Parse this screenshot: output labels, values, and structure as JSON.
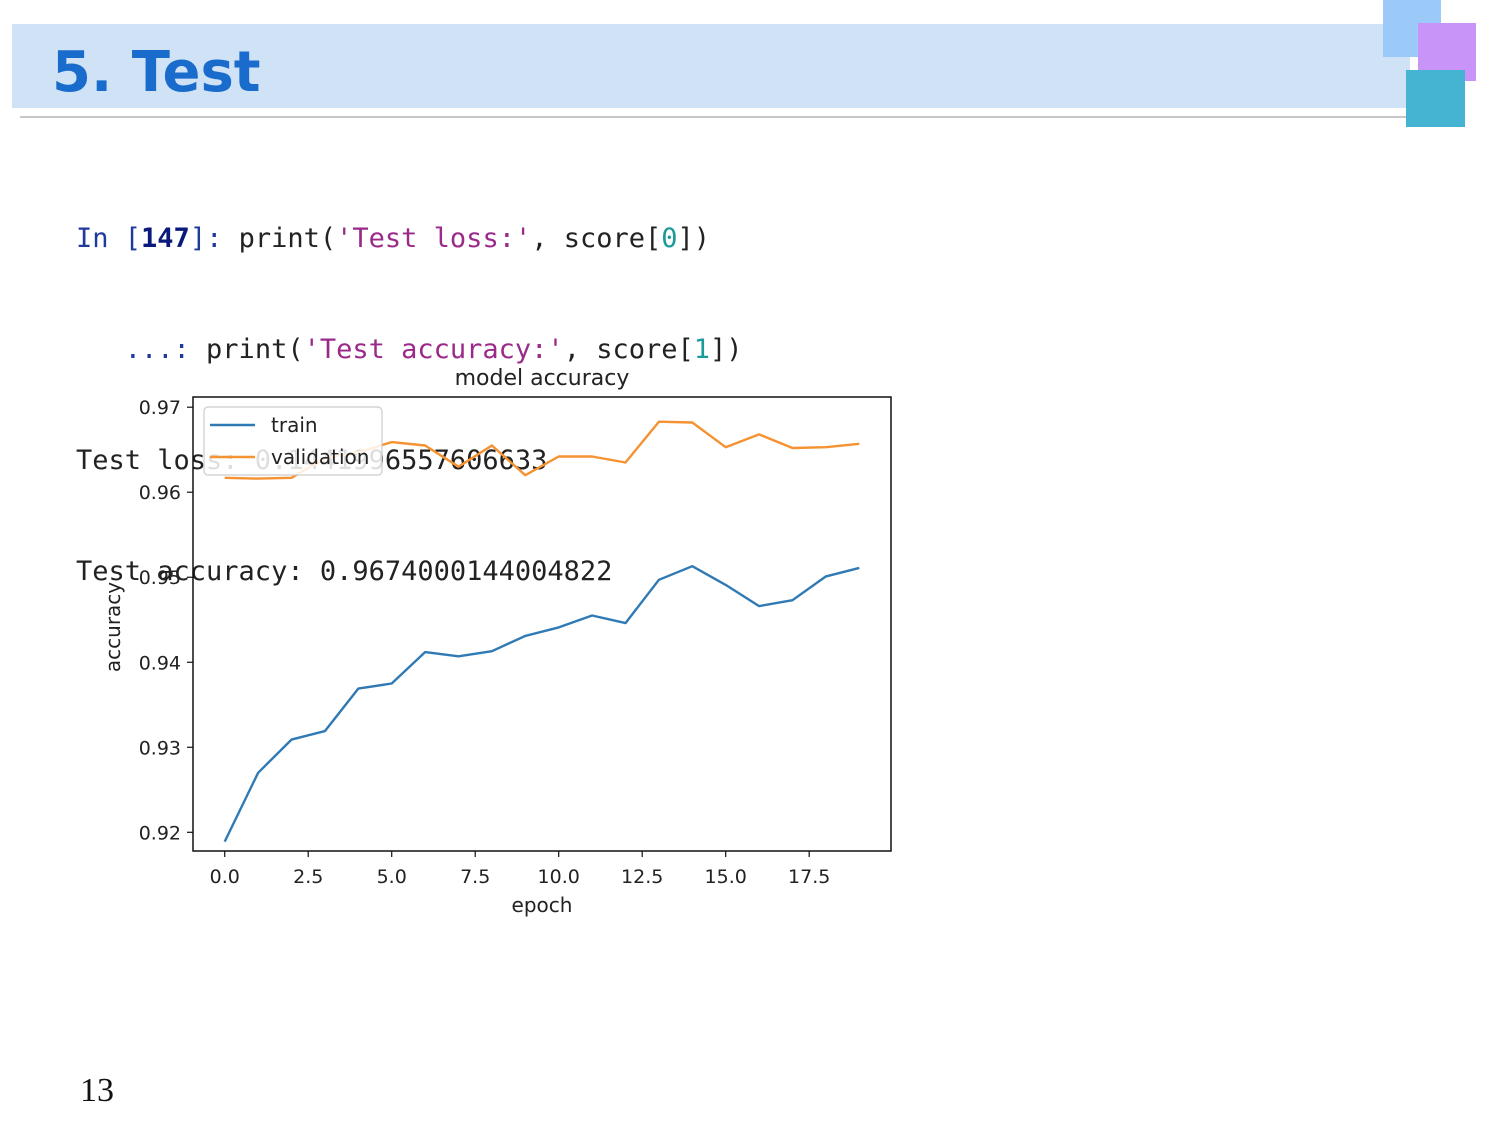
{
  "slide": {
    "title": "5. Test",
    "page_number": "13"
  },
  "code": {
    "line1": {
      "prompt_open": "In [",
      "prompt_num": "147",
      "prompt_close": "]: ",
      "fn": "print(",
      "str": "'Test loss:'",
      "mid": ", score[",
      "idx": "0",
      "end": "])"
    },
    "line2": {
      "prompt": "   ...: ",
      "fn": "print(",
      "str": "'Test accuracy:'",
      "mid": ", score[",
      "idx": "1",
      "end": "])"
    },
    "output1": "Test loss: 0.1441996557606633",
    "output2": "Test accuracy: 0.9674000144004822"
  },
  "colors": {
    "train": "#2f7ab5",
    "validation": "#f59231"
  },
  "chart_data": {
    "type": "line",
    "title": "model accuracy",
    "xlabel": "epoch",
    "ylabel": "accuracy",
    "xlim": [
      -0.95,
      19.95
    ],
    "ylim": [
      0.9178,
      0.9712
    ],
    "xticks": [
      "0.0",
      "2.5",
      "5.0",
      "7.5",
      "10.0",
      "12.5",
      "15.0",
      "17.5"
    ],
    "yticks": [
      "0.92",
      "0.93",
      "0.94",
      "0.95",
      "0.96",
      "0.97"
    ],
    "legend_position": "upper-left",
    "x": [
      0,
      1,
      2,
      3,
      4,
      5,
      6,
      7,
      8,
      9,
      10,
      11,
      12,
      13,
      14,
      15,
      16,
      17,
      18,
      19
    ],
    "series": [
      {
        "name": "train",
        "values": [
          0.9189,
          0.927,
          0.9309,
          0.9319,
          0.9369,
          0.9375,
          0.9412,
          0.9407,
          0.9413,
          0.9431,
          0.9441,
          0.9455,
          0.9446,
          0.9497,
          0.9513,
          0.9491,
          0.9466,
          0.9473,
          0.9501,
          0.9511
        ]
      },
      {
        "name": "validation",
        "values": [
          0.9617,
          0.9616,
          0.9617,
          0.964,
          0.9647,
          0.9659,
          0.9655,
          0.963,
          0.9655,
          0.962,
          0.9642,
          0.9642,
          0.9635,
          0.9683,
          0.9682,
          0.9653,
          0.9668,
          0.9652,
          0.9653,
          0.9657
        ]
      }
    ]
  }
}
